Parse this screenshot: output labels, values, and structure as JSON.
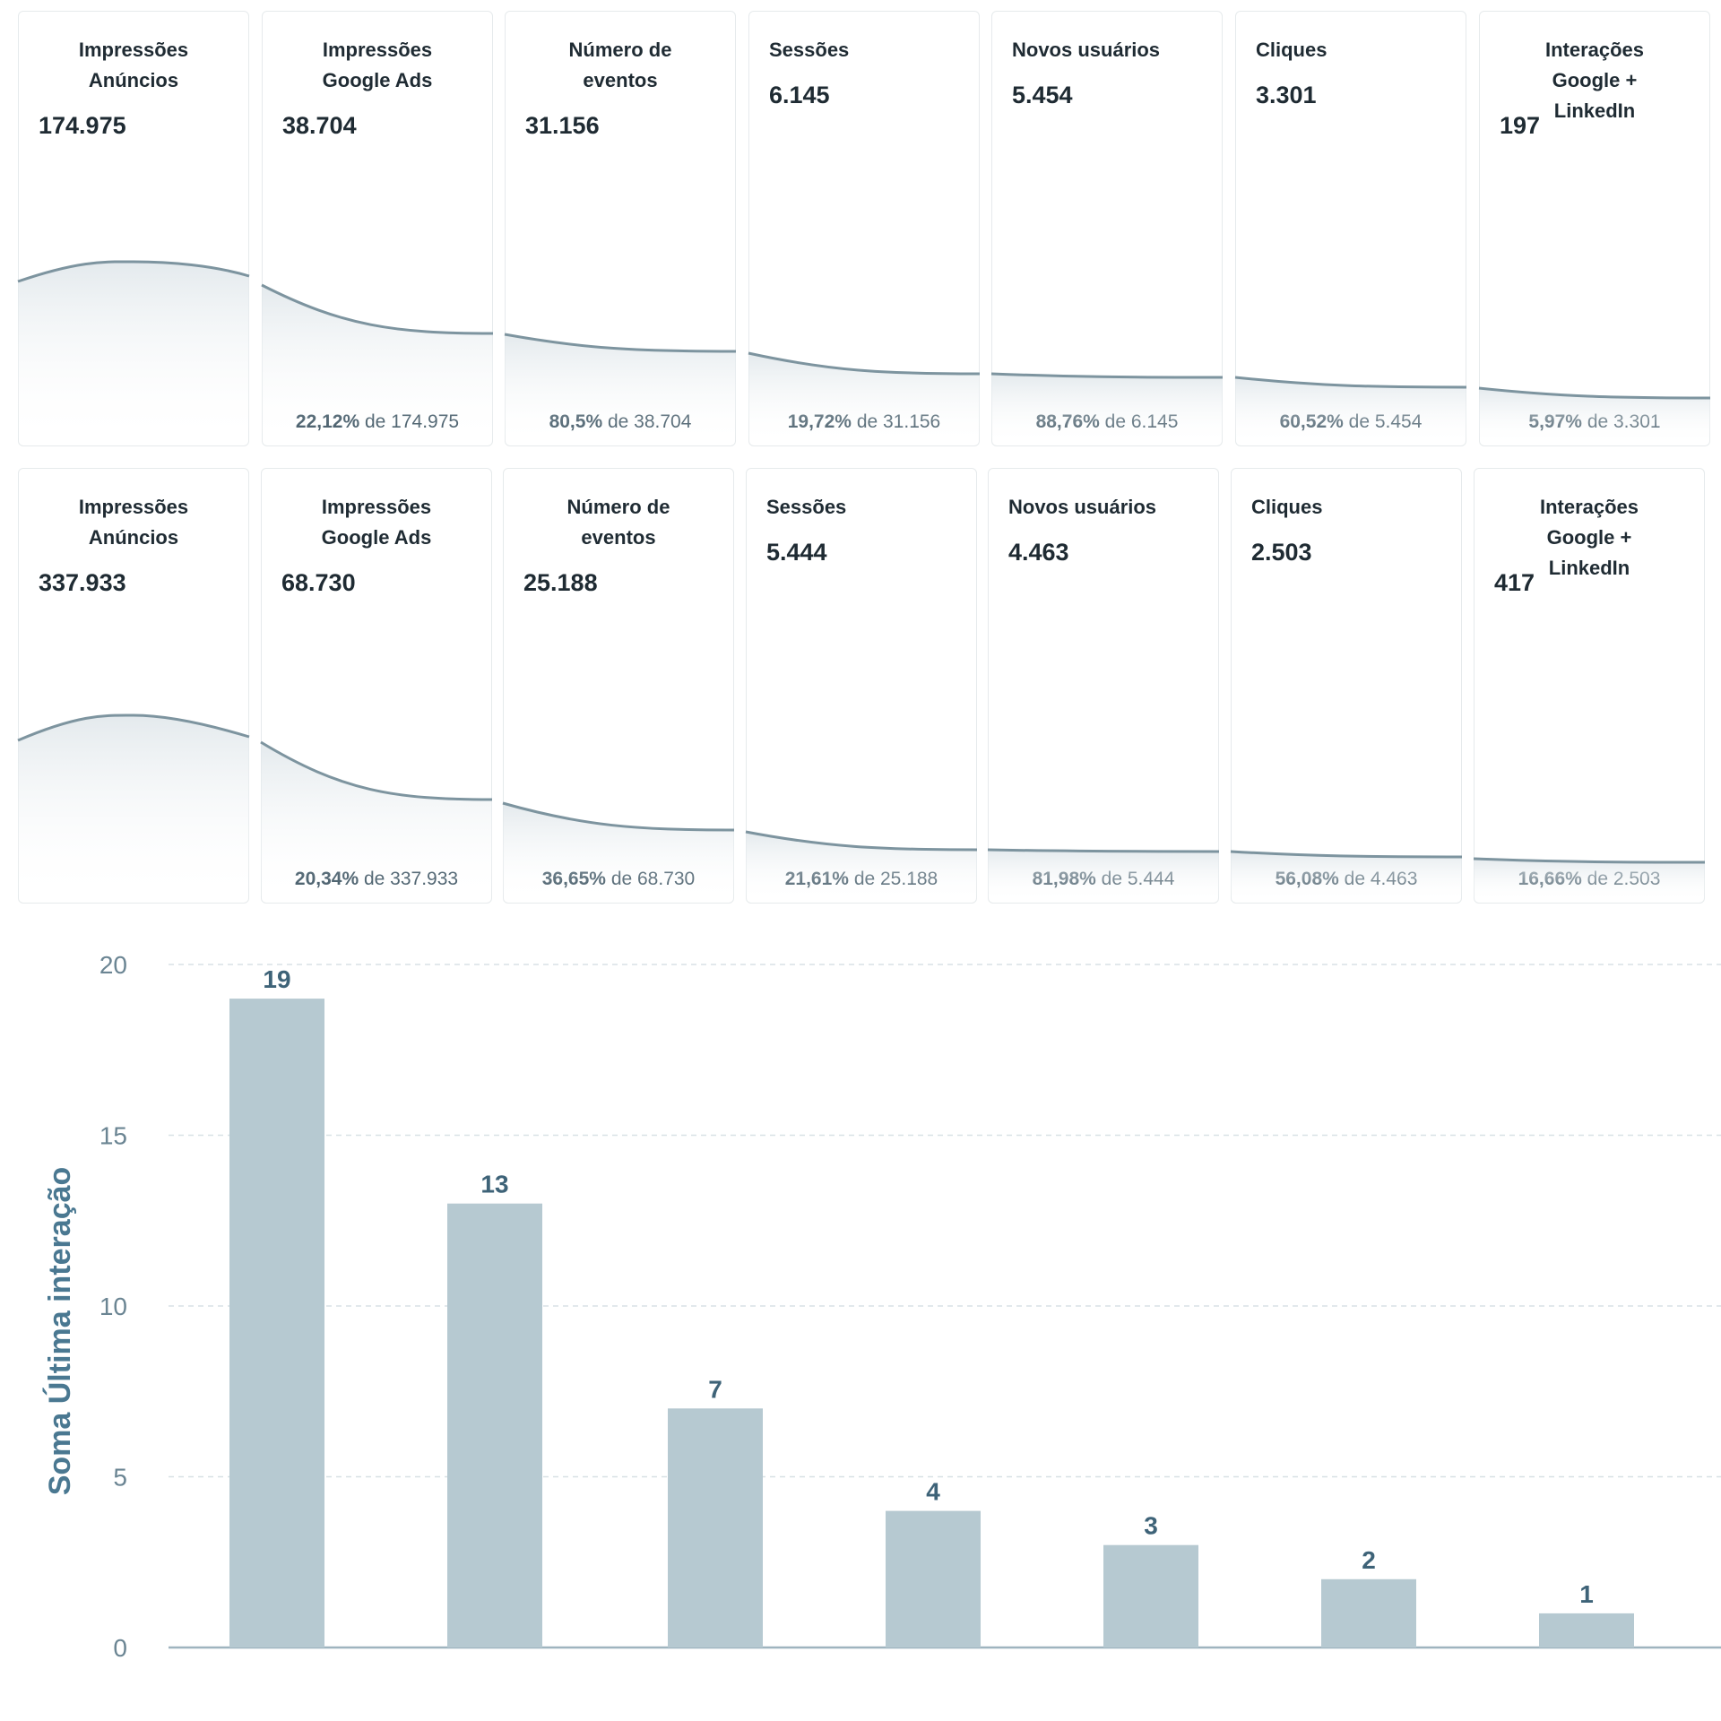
{
  "funnels": [
    {
      "stages": [
        {
          "label": "Impressões Anúncios",
          "value": "174.975",
          "pct": "",
          "of": ""
        },
        {
          "label": "Impressões Google Ads",
          "value": "38.704",
          "pct": "22,12%",
          "of": "de 174.975"
        },
        {
          "label": "Número de eventos",
          "value": "31.156",
          "pct": "80,5%",
          "of": "de 38.704"
        },
        {
          "label": "Sessões",
          "value": "6.145",
          "pct": "19,72%",
          "of": "de 31.156"
        },
        {
          "label": "Novos usuários",
          "value": "5.454",
          "pct": "88,76%",
          "of": "de 6.145"
        },
        {
          "label": "Cliques",
          "value": "3.301",
          "pct": "60,52%",
          "of": "de 5.454"
        },
        {
          "label": "Interações Google + LinkedIn",
          "value": "197",
          "pct": "5,97%",
          "of": "de 3.301"
        }
      ]
    },
    {
      "stages": [
        {
          "label": "Impressões Anúncios",
          "value": "337.933",
          "pct": "",
          "of": ""
        },
        {
          "label": "Impressões Google Ads",
          "value": "68.730",
          "pct": "20,34%",
          "of": "de 337.933"
        },
        {
          "label": "Número de eventos",
          "value": "25.188",
          "pct": "36,65%",
          "of": "de 68.730"
        },
        {
          "label": "Sessões",
          "value": "5.444",
          "pct": "21,61%",
          "of": "de 25.188"
        },
        {
          "label": "Novos usuários",
          "value": "4.463",
          "pct": "81,98%",
          "of": "de 5.444"
        },
        {
          "label": "Cliques",
          "value": "2.503",
          "pct": "56,08%",
          "of": "de 4.463"
        },
        {
          "label": "Interações Google + LinkedIn",
          "value": "417",
          "pct": "16,66%",
          "of": "de 2.503"
        }
      ]
    }
  ],
  "chart_data": [
    {
      "type": "area",
      "categories": [
        "Impressões Anúncios",
        "Impressões Google Ads",
        "Número de eventos",
        "Sessões",
        "Novos usuários",
        "Cliques",
        "Interações Google + LinkedIn"
      ],
      "values": [
        174975,
        38704,
        31156,
        6145,
        5454,
        3301,
        197
      ]
    },
    {
      "type": "area",
      "categories": [
        "Impressões Anúncios",
        "Impressões Google Ads",
        "Número de eventos",
        "Sessões",
        "Novos usuários",
        "Cliques",
        "Interações Google + LinkedIn"
      ],
      "values": [
        337933,
        68730,
        25188,
        5444,
        4463,
        2503,
        417
      ]
    },
    {
      "type": "bar",
      "title": "",
      "xlabel": "",
      "ylabel": "Soma Última interação",
      "categories": [
        "",
        "",
        "",
        "",
        "",
        "",
        ""
      ],
      "values": [
        19,
        13,
        7,
        4,
        3,
        2,
        1
      ],
      "data_labels": [
        "19",
        "13",
        "7",
        "4",
        "3",
        "2",
        "1"
      ],
      "ylim": [
        0,
        20
      ],
      "yticks": [
        "0",
        "5",
        "10",
        "15",
        "20"
      ],
      "grid": true,
      "bar_color": "#b6c9d1"
    }
  ]
}
